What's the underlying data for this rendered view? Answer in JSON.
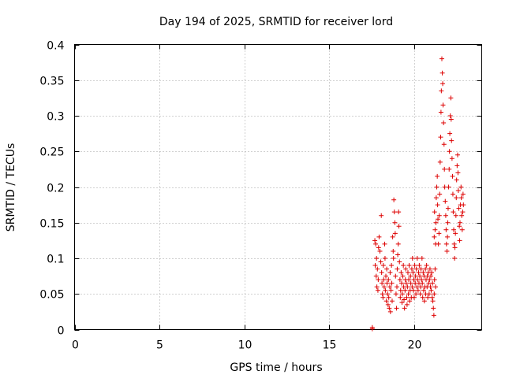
{
  "chart_data": {
    "type": "scatter",
    "title": "Day 194 of 2025, SRMTID for receiver lord",
    "xlabel": "GPS time / hours",
    "ylabel": "SRMTID / TECUs",
    "xlim": [
      0,
      24
    ],
    "ylim": [
      0,
      0.4
    ],
    "xticks": [
      0,
      5,
      10,
      15,
      20
    ],
    "xtick_labels": [
      "0",
      "5",
      "10",
      "15",
      "20"
    ],
    "yticks": [
      0,
      0.05,
      0.1,
      0.15,
      0.2,
      0.25,
      0.3,
      0.35,
      0.4
    ],
    "ytick_labels": [
      "0",
      "0.05",
      "0.1",
      "0.15",
      "0.2",
      "0.25",
      "0.3",
      "0.35",
      "0.4"
    ],
    "grid": true,
    "marker": "plus",
    "color": "#dd0000",
    "series": [
      {
        "name": "SRMTID",
        "points": [
          [
            17.55,
            0.001
          ],
          [
            17.55,
            0.003
          ],
          [
            17.7,
            0.125
          ],
          [
            17.75,
            0.12
          ],
          [
            17.8,
            0.1
          ],
          [
            17.85,
            0.085
          ],
          [
            17.9,
            0.07
          ],
          [
            17.72,
            0.09
          ],
          [
            17.78,
            0.075
          ],
          [
            17.82,
            0.06
          ],
          [
            17.88,
            0.055
          ],
          [
            17.92,
            0.115
          ],
          [
            17.95,
            0.13
          ],
          [
            18.0,
            0.11
          ],
          [
            18.05,
            0.095
          ],
          [
            18.08,
            0.16
          ],
          [
            18.1,
            0.08
          ],
          [
            18.12,
            0.065
          ],
          [
            18.15,
            0.05
          ],
          [
            18.18,
            0.045
          ],
          [
            18.2,
            0.09
          ],
          [
            18.22,
            0.07
          ],
          [
            18.25,
            0.06
          ],
          [
            18.28,
            0.12
          ],
          [
            18.3,
            0.1
          ],
          [
            18.32,
            0.055
          ],
          [
            18.35,
            0.075
          ],
          [
            18.38,
            0.04
          ],
          [
            18.4,
            0.085
          ],
          [
            18.42,
            0.065
          ],
          [
            18.45,
            0.05
          ],
          [
            18.48,
            0.035
          ],
          [
            18.5,
            0.07
          ],
          [
            18.52,
            0.045
          ],
          [
            18.55,
            0.03
          ],
          [
            18.58,
            0.06
          ],
          [
            18.6,
            0.08
          ],
          [
            18.62,
            0.025
          ],
          [
            18.65,
            0.055
          ],
          [
            18.68,
            0.09
          ],
          [
            18.7,
            0.065
          ],
          [
            18.72,
            0.04
          ],
          [
            18.75,
            0.13
          ],
          [
            18.78,
            0.11
          ],
          [
            18.8,
            0.1
          ],
          [
            18.82,
            0.182
          ],
          [
            18.85,
            0.165
          ],
          [
            18.88,
            0.15
          ],
          [
            18.9,
            0.135
          ],
          [
            18.92,
            0.075
          ],
          [
            18.95,
            0.05
          ],
          [
            18.98,
            0.03
          ],
          [
            19.0,
            0.06
          ],
          [
            19.02,
            0.085
          ],
          [
            19.05,
            0.105
          ],
          [
            19.08,
            0.12
          ],
          [
            19.1,
            0.165
          ],
          [
            19.12,
            0.145
          ],
          [
            19.15,
            0.095
          ],
          [
            19.18,
            0.07
          ],
          [
            19.2,
            0.045
          ],
          [
            19.22,
            0.055
          ],
          [
            19.25,
            0.08
          ],
          [
            19.28,
            0.065
          ],
          [
            19.3,
            0.038
          ],
          [
            19.32,
            0.05
          ],
          [
            19.35,
            0.075
          ],
          [
            19.38,
            0.09
          ],
          [
            19.4,
            0.06
          ],
          [
            19.42,
            0.042
          ],
          [
            19.45,
            0.03
          ],
          [
            19.48,
            0.055
          ],
          [
            19.5,
            0.07
          ],
          [
            19.52,
            0.085
          ],
          [
            19.55,
            0.065
          ],
          [
            19.58,
            0.045
          ],
          [
            19.6,
            0.035
          ],
          [
            19.62,
            0.06
          ],
          [
            19.65,
            0.08
          ],
          [
            19.68,
            0.05
          ],
          [
            19.7,
            0.07
          ],
          [
            19.72,
            0.09
          ],
          [
            19.75,
            0.04
          ],
          [
            19.78,
            0.055
          ],
          [
            19.8,
            0.075
          ],
          [
            19.82,
            0.065
          ],
          [
            19.85,
            0.045
          ],
          [
            19.88,
            0.085
          ],
          [
            19.9,
            0.06
          ],
          [
            19.92,
            0.1
          ],
          [
            19.95,
            0.08
          ],
          [
            19.98,
            0.055
          ],
          [
            20.0,
            0.07
          ],
          [
            20.02,
            0.045
          ],
          [
            20.05,
            0.09
          ],
          [
            20.08,
            0.065
          ],
          [
            20.1,
            0.075
          ],
          [
            20.12,
            0.05
          ],
          [
            20.15,
            0.085
          ],
          [
            20.18,
            0.06
          ],
          [
            20.2,
            0.1
          ],
          [
            20.22,
            0.07
          ],
          [
            20.25,
            0.055
          ],
          [
            20.28,
            0.08
          ],
          [
            20.3,
            0.065
          ],
          [
            20.32,
            0.09
          ],
          [
            20.35,
            0.075
          ],
          [
            20.38,
            0.05
          ],
          [
            20.4,
            0.06
          ],
          [
            20.42,
            0.085
          ],
          [
            20.45,
            0.07
          ],
          [
            20.48,
            0.1
          ],
          [
            20.5,
            0.065
          ],
          [
            20.52,
            0.045
          ],
          [
            20.55,
            0.08
          ],
          [
            20.58,
            0.055
          ],
          [
            20.6,
            0.075
          ],
          [
            20.62,
            0.04
          ],
          [
            20.65,
            0.06
          ],
          [
            20.68,
            0.085
          ],
          [
            20.7,
            0.05
          ],
          [
            20.72,
            0.07
          ],
          [
            20.75,
            0.09
          ],
          [
            20.78,
            0.06
          ],
          [
            20.8,
            0.075
          ],
          [
            20.82,
            0.045
          ],
          [
            20.85,
            0.08
          ],
          [
            20.88,
            0.065
          ],
          [
            20.9,
            0.05
          ],
          [
            20.92,
            0.07
          ],
          [
            20.95,
            0.085
          ],
          [
            20.98,
            0.06
          ],
          [
            21.0,
            0.075
          ],
          [
            21.02,
            0.055
          ],
          [
            21.05,
            0.08
          ],
          [
            21.08,
            0.045
          ],
          [
            21.1,
            0.065
          ],
          [
            21.12,
            0.04
          ],
          [
            21.15,
            0.03
          ],
          [
            21.18,
            0.02
          ],
          [
            21.2,
            0.05
          ],
          [
            21.22,
            0.07
          ],
          [
            21.25,
            0.085
          ],
          [
            21.28,
            0.06
          ],
          [
            21.2,
            0.13
          ],
          [
            21.22,
            0.165
          ],
          [
            21.25,
            0.14
          ],
          [
            21.28,
            0.12
          ],
          [
            21.3,
            0.15
          ],
          [
            21.32,
            0.185
          ],
          [
            21.35,
            0.2
          ],
          [
            21.38,
            0.215
          ],
          [
            21.4,
            0.175
          ],
          [
            21.42,
            0.155
          ],
          [
            21.45,
            0.12
          ],
          [
            21.48,
            0.135
          ],
          [
            21.5,
            0.16
          ],
          [
            21.52,
            0.19
          ],
          [
            21.55,
            0.235
          ],
          [
            21.58,
            0.27
          ],
          [
            21.6,
            0.305
          ],
          [
            21.62,
            0.335
          ],
          [
            21.65,
            0.38
          ],
          [
            21.68,
            0.36
          ],
          [
            21.7,
            0.345
          ],
          [
            21.72,
            0.315
          ],
          [
            21.75,
            0.29
          ],
          [
            21.78,
            0.26
          ],
          [
            21.8,
            0.225
          ],
          [
            21.82,
            0.2
          ],
          [
            21.85,
            0.18
          ],
          [
            21.88,
            0.16
          ],
          [
            21.9,
            0.14
          ],
          [
            21.92,
            0.12
          ],
          [
            21.95,
            0.11
          ],
          [
            21.98,
            0.13
          ],
          [
            22.0,
            0.15
          ],
          [
            22.02,
            0.17
          ],
          [
            22.05,
            0.2
          ],
          [
            22.08,
            0.225
          ],
          [
            22.1,
            0.25
          ],
          [
            22.12,
            0.275
          ],
          [
            22.15,
            0.3
          ],
          [
            22.18,
            0.325
          ],
          [
            22.2,
            0.295
          ],
          [
            22.22,
            0.265
          ],
          [
            22.25,
            0.24
          ],
          [
            22.28,
            0.215
          ],
          [
            22.3,
            0.19
          ],
          [
            22.32,
            0.165
          ],
          [
            22.35,
            0.14
          ],
          [
            22.38,
            0.12
          ],
          [
            22.4,
            0.1
          ],
          [
            22.42,
            0.115
          ],
          [
            22.45,
            0.135
          ],
          [
            22.48,
            0.16
          ],
          [
            22.5,
            0.185
          ],
          [
            22.52,
            0.21
          ],
          [
            22.55,
            0.23
          ],
          [
            22.58,
            0.245
          ],
          [
            22.6,
            0.22
          ],
          [
            22.62,
            0.195
          ],
          [
            22.65,
            0.17
          ],
          [
            22.68,
            0.145
          ],
          [
            22.7,
            0.125
          ],
          [
            22.72,
            0.15
          ],
          [
            22.75,
            0.175
          ],
          [
            22.78,
            0.2
          ],
          [
            22.8,
            0.185
          ],
          [
            22.82,
            0.16
          ],
          [
            22.85,
            0.14
          ],
          [
            22.88,
            0.165
          ],
          [
            22.9,
            0.19
          ],
          [
            22.92,
            0.175
          ]
        ]
      }
    ]
  }
}
